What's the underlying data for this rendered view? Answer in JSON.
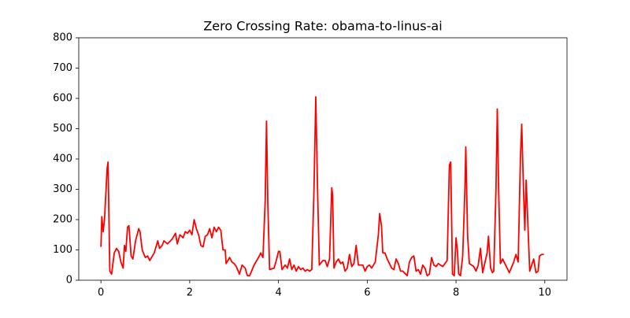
{
  "chart_data": {
    "type": "line",
    "title": "Zero Crossing Rate: obama-to-linus-ai",
    "color": "#ff0000",
    "x": [
      0,
      0.02,
      0.05,
      0.08,
      0.14,
      0.16,
      0.2,
      0.24,
      0.3,
      0.35,
      0.4,
      0.45,
      0.5,
      0.53,
      0.56,
      0.6,
      0.63,
      0.68,
      0.72,
      0.78,
      0.85,
      0.88,
      0.93,
      1.0,
      1.05,
      1.1,
      1.2,
      1.28,
      1.32,
      1.38,
      1.42,
      1.5,
      1.6,
      1.68,
      1.72,
      1.78,
      1.85,
      1.9,
      1.95,
      2.0,
      2.05,
      2.1,
      2.15,
      2.2,
      2.25,
      2.3,
      2.35,
      2.4,
      2.45,
      2.5,
      2.55,
      2.6,
      2.65,
      2.7,
      2.75,
      2.8,
      2.82,
      2.9,
      2.95,
      3.0,
      3.05,
      3.12,
      3.18,
      3.25,
      3.3,
      3.35,
      3.45,
      3.55,
      3.6,
      3.65,
      3.7,
      3.73,
      3.76,
      3.8,
      3.9,
      3.95,
      4.0,
      4.03,
      4.08,
      4.15,
      4.2,
      4.25,
      4.3,
      4.35,
      4.4,
      4.45,
      4.5,
      4.55,
      4.6,
      4.65,
      4.7,
      4.75,
      4.8,
      4.84,
      4.88,
      4.92,
      5.0,
      5.05,
      5.1,
      5.15,
      5.2,
      5.22,
      5.25,
      5.3,
      5.35,
      5.4,
      5.45,
      5.5,
      5.55,
      5.6,
      5.65,
      5.7,
      5.75,
      5.8,
      5.9,
      5.95,
      6.0,
      6.05,
      6.1,
      6.18,
      6.25,
      6.28,
      6.32,
      6.35,
      6.4,
      6.45,
      6.5,
      6.55,
      6.6,
      6.65,
      6.7,
      6.75,
      6.8,
      6.9,
      6.95,
      7.0,
      7.05,
      7.1,
      7.15,
      7.2,
      7.25,
      7.3,
      7.35,
      7.4,
      7.45,
      7.5,
      7.55,
      7.6,
      7.65,
      7.7,
      7.8,
      7.85,
      7.88,
      7.92,
      7.96,
      8.0,
      8.03,
      8.06,
      8.1,
      8.15,
      8.2,
      8.22,
      8.26,
      8.3,
      8.4,
      8.45,
      8.5,
      8.55,
      8.6,
      8.7,
      8.73,
      8.78,
      8.82,
      8.85,
      8.9,
      8.93,
      8.96,
      9.0,
      9.05,
      9.1,
      9.15,
      9.2,
      9.3,
      9.35,
      9.4,
      9.45,
      9.48,
      9.52,
      9.55,
      9.58,
      9.62,
      9.66,
      9.75,
      9.8,
      9.85,
      9.88,
      9.93,
      9.98
    ],
    "values": [
      110,
      210,
      160,
      200,
      370,
      390,
      30,
      20,
      90,
      105,
      95,
      60,
      40,
      115,
      95,
      175,
      180,
      80,
      70,
      130,
      170,
      160,
      100,
      75,
      80,
      65,
      90,
      130,
      105,
      115,
      130,
      120,
      135,
      155,
      120,
      150,
      140,
      160,
      155,
      165,
      150,
      200,
      170,
      150,
      115,
      110,
      145,
      150,
      170,
      140,
      175,
      160,
      175,
      165,
      100,
      100,
      55,
      75,
      60,
      55,
      45,
      20,
      50,
      40,
      15,
      15,
      50,
      75,
      90,
      75,
      260,
      525,
      250,
      35,
      40,
      65,
      95,
      95,
      35,
      50,
      40,
      70,
      35,
      50,
      30,
      45,
      35,
      40,
      30,
      35,
      30,
      35,
      300,
      605,
      300,
      50,
      65,
      65,
      45,
      70,
      305,
      280,
      40,
      60,
      70,
      55,
      60,
      30,
      40,
      85,
      45,
      55,
      115,
      50,
      50,
      30,
      45,
      50,
      40,
      60,
      150,
      220,
      180,
      90,
      90,
      70,
      55,
      40,
      35,
      70,
      55,
      30,
      30,
      15,
      60,
      75,
      80,
      30,
      35,
      20,
      50,
      40,
      15,
      20,
      75,
      50,
      45,
      55,
      50,
      45,
      65,
      380,
      390,
      20,
      15,
      140,
      100,
      20,
      15,
      80,
      300,
      440,
      150,
      55,
      45,
      30,
      50,
      105,
      25,
      90,
      145,
      40,
      25,
      30,
      300,
      565,
      300,
      55,
      70,
      55,
      40,
      25,
      60,
      85,
      60,
      400,
      515,
      300,
      165,
      330,
      180,
      30,
      70,
      25,
      30,
      80,
      85,
      85
    ],
    "xlim": [
      -0.5,
      10.5
    ],
    "xticks": [
      0,
      2,
      4,
      6,
      8,
      10
    ],
    "ylim": [
      0,
      800
    ],
    "yticks": [
      0,
      100,
      200,
      300,
      400,
      500,
      600,
      700,
      800
    ]
  }
}
